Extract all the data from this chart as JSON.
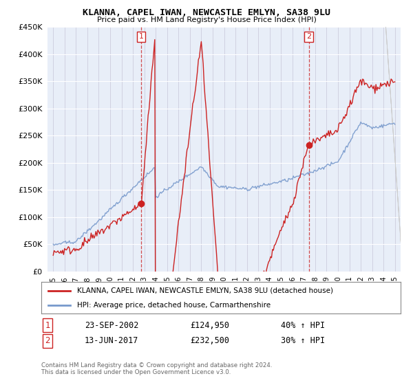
{
  "title": "KLANNA, CAPEL IWAN, NEWCASTLE EMLYN, SA38 9LU",
  "subtitle": "Price paid vs. HM Land Registry's House Price Index (HPI)",
  "legend_line1": "KLANNA, CAPEL IWAN, NEWCASTLE EMLYN, SA38 9LU (detached house)",
  "legend_line2": "HPI: Average price, detached house, Carmarthenshire",
  "annotation1_label": "1",
  "annotation1_date": "23-SEP-2002",
  "annotation1_price": "£124,950",
  "annotation1_hpi": "40% ↑ HPI",
  "annotation2_label": "2",
  "annotation2_date": "13-JUN-2017",
  "annotation2_price": "£232,500",
  "annotation2_hpi": "30% ↑ HPI",
  "footer": "Contains HM Land Registry data © Crown copyright and database right 2024.\nThis data is licensed under the Open Government Licence v3.0.",
  "property_color": "#cc2222",
  "hpi_color": "#7799cc",
  "background_color": "#e8eef8",
  "grid_color": "#ffffff",
  "vgrid_color": "#ccccdd",
  "ylim": [
    0,
    450000
  ],
  "yticks": [
    0,
    50000,
    100000,
    150000,
    200000,
    250000,
    300000,
    350000,
    400000,
    450000
  ],
  "sale1_year": 2002.72,
  "sale1_price": 124950,
  "sale2_year": 2017.44,
  "sale2_price": 232500,
  "xstart": 1995,
  "xend": 2025
}
